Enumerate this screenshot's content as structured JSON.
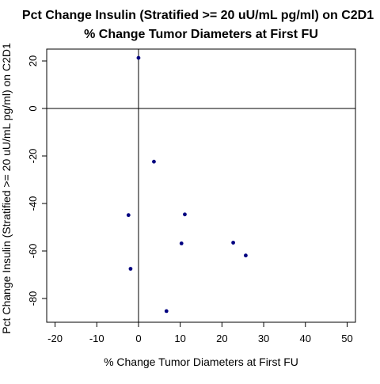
{
  "chart_data": {
    "type": "scatter",
    "title_line1": "Pct Change Insulin (Stratified >= 20 uU/mL pg/ml) on C2D1",
    "title_line2": "% Change Tumor Diameters at First FU",
    "xlabel": "% Change Tumor Diameters at First FU",
    "ylabel": "Pct Change Insulin (Stratified >= 20 uU/mL pg/ml) on C2D1",
    "xlim": [
      -22,
      52
    ],
    "ylim": [
      -90,
      25
    ],
    "x_ticks": [
      -20,
      -10,
      0,
      10,
      20,
      30,
      40,
      50
    ],
    "y_ticks": [
      20,
      0,
      -20,
      -40,
      -60,
      -80
    ],
    "x_tick_labels": [
      "-20",
      "-10",
      "0",
      "10",
      "20",
      "30",
      "40",
      "50"
    ],
    "y_tick_labels": [
      "20",
      "0",
      "-20",
      "-40",
      "-60",
      "-80"
    ],
    "reference_lines": {
      "x": 0,
      "y": 0
    },
    "grid": false,
    "point_color": "#000080",
    "points": [
      {
        "x": 0.0,
        "y": 21.3
      },
      {
        "x": 3.7,
        "y": -22.4
      },
      {
        "x": -2.4,
        "y": -44.9
      },
      {
        "x": 11.1,
        "y": -44.6
      },
      {
        "x": 10.3,
        "y": -56.8
      },
      {
        "x": 22.7,
        "y": -56.5
      },
      {
        "x": 25.7,
        "y": -61.9
      },
      {
        "x": -1.9,
        "y": -67.5
      },
      {
        "x": 6.7,
        "y": -85.3
      }
    ]
  }
}
